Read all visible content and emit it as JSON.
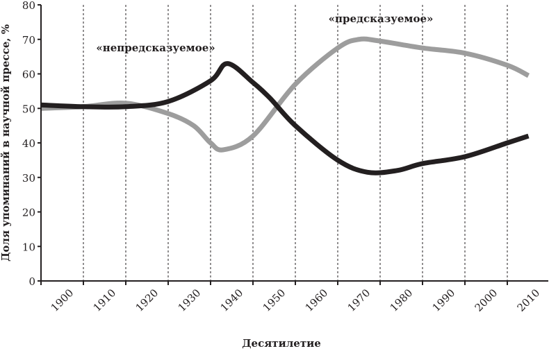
{
  "chart_data": {
    "type": "line",
    "title": "",
    "xlabel": "Десятилетие",
    "ylabel": "Доля упоминаний в научной прессе, %",
    "xlim": [
      1900,
      2020
    ],
    "ylim": [
      0,
      80
    ],
    "yticks": [
      0,
      10,
      20,
      30,
      40,
      50,
      60,
      70,
      80
    ],
    "xtick_labels": [
      "1900",
      "1910",
      "1920",
      "1930",
      "1940",
      "1950",
      "1960",
      "1970",
      "1980",
      "1990",
      "2000",
      "2010"
    ],
    "grid": "vertical dashed",
    "annotations": [
      "«непредсказуемое»",
      "«предсказуемое»"
    ],
    "series": [
      {
        "color": "#231f20",
        "x": [
          1900,
          1910,
          1920,
          1930,
          1940,
          1944,
          1950,
          1954,
          1960,
          1970,
          1977,
          1984,
          1990,
          2000,
          2010,
          2015
        ],
        "y": [
          51,
          50.5,
          50.5,
          52,
          58,
          63,
          57.5,
          53,
          45,
          35,
          31.5,
          32,
          34,
          36,
          40,
          42
        ]
      },
      {
        "color": "#9d9d9d",
        "x": [
          1900,
          1910,
          1920,
          1930,
          1936,
          1940,
          1943,
          1950,
          1960,
          1970,
          1975,
          1980,
          1990,
          2000,
          2010,
          2015
        ],
        "y": [
          50,
          50.5,
          51.5,
          48.5,
          45,
          40,
          38,
          42,
          57,
          67.5,
          70,
          69.5,
          67.5,
          66,
          62.5,
          59.5
        ]
      }
    ]
  }
}
